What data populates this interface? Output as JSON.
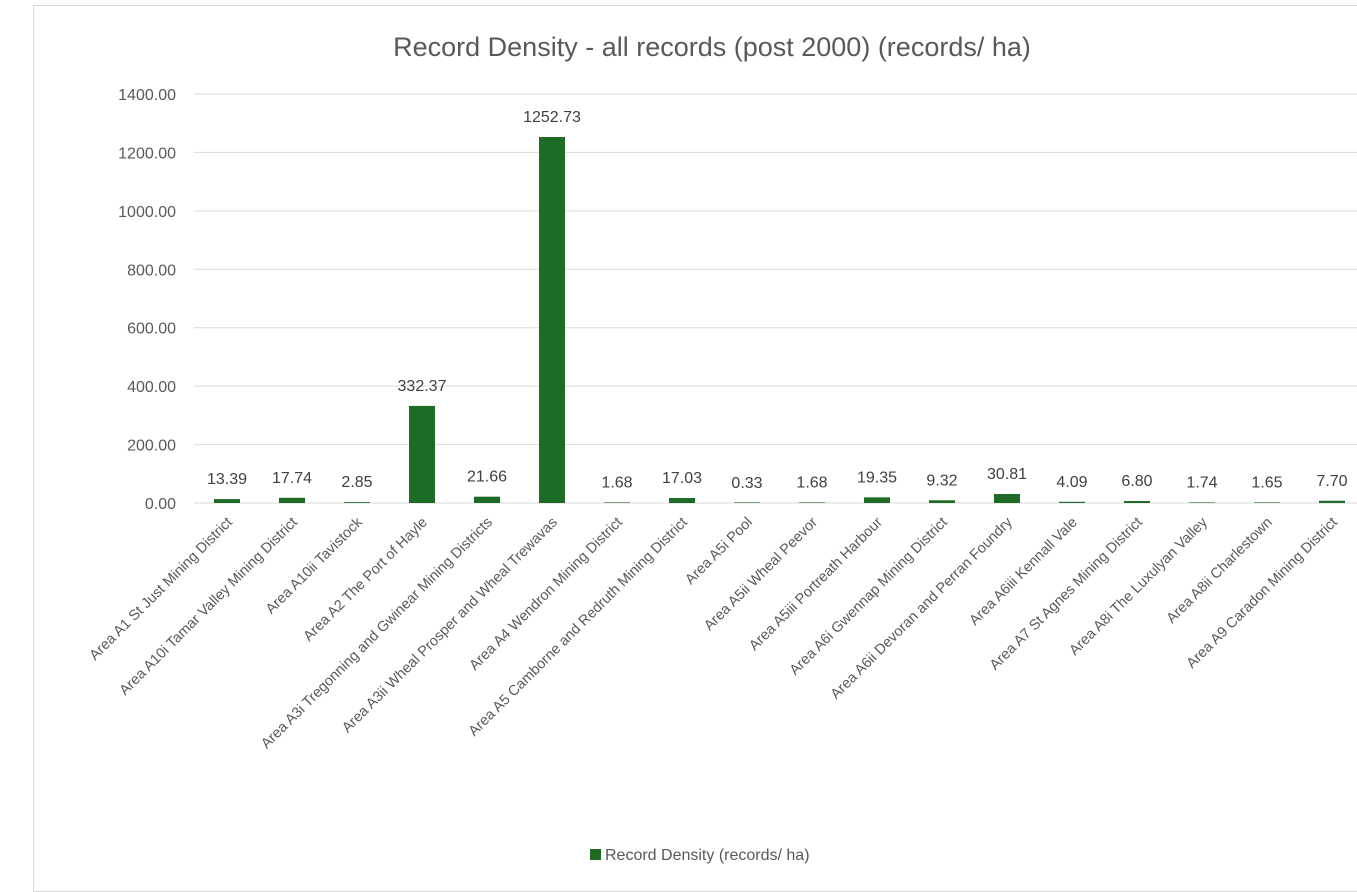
{
  "chart_data": {
    "type": "bar",
    "title": "Record Density - all records (post 2000) (records/ ha)",
    "xlabel": "",
    "ylabel": "",
    "ylim": [
      0,
      1400
    ],
    "yticks": [
      "0.00",
      "200.00",
      "400.00",
      "600.00",
      "800.00",
      "1000.00",
      "1200.00",
      "1400.00"
    ],
    "grid": true,
    "legend_position": "bottom",
    "color": "#1e6b25",
    "categories": [
      "Area A1 St Just Mining District",
      "Area A10i Tamar Valley Mining District",
      "Area A10ii Tavistock",
      "Area A2 The Port of Hayle",
      "Area A3i Tregonning and Gwinear Mining Districts",
      "Area A3ii Wheal Prosper and Wheal Trewavas",
      "Area A4 Wendron Mining District",
      "Area A5 Camborne and Redruth Mining District",
      "Area A5i Pool",
      "Area A5ii Wheal Peevor",
      "Area A5iii Portreath Harbour",
      "Area A6i Gwennap Mining District",
      "Area A6ii Devoran and Perran Foundry",
      "Area A6iii Kennall Vale",
      "Area A7 St Agnes Mining District",
      "Area A8i The Luxulyan Valley",
      "Area A8ii Charlestown",
      "Area A9 Caradon Mining District"
    ],
    "series": [
      {
        "name": "Record Density (records/ ha)",
        "values": [
          13.39,
          17.74,
          2.85,
          332.37,
          21.66,
          1252.73,
          1.68,
          17.03,
          0.33,
          1.68,
          19.35,
          9.32,
          30.81,
          4.09,
          6.8,
          1.74,
          1.65,
          7.7
        ],
        "labels": [
          "13.39",
          "17.74",
          "2.85",
          "332.37",
          "21.66",
          "1252.73",
          "1.68",
          "17.03",
          "0.33",
          "1.68",
          "19.35",
          "9.32",
          "30.81",
          "4.09",
          "6.80",
          "1.74",
          "1.65",
          "7.70"
        ]
      }
    ]
  }
}
